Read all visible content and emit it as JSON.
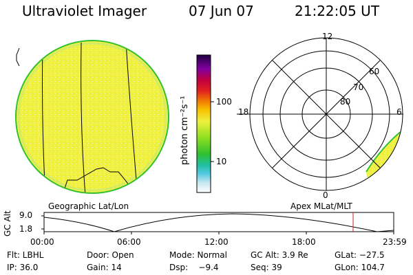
{
  "header": {
    "instrument": "Ultraviolet Imager",
    "date": "07 Jun 07",
    "time": "21:22:05 UT"
  },
  "colorbar": {
    "label": "photon cm⁻²s⁻¹",
    "ticks": [
      "100",
      "10"
    ]
  },
  "geo_panel": {
    "caption": "Geographic Lat/Lon"
  },
  "polar_panel": {
    "caption": "Apex MLat/MLT",
    "mlt_labels": {
      "top": "12",
      "left": "18",
      "right": "6",
      "bottom": "0"
    },
    "lat_labels": [
      "60",
      "70",
      "80"
    ]
  },
  "altitude_plot": {
    "ylabel": "GC Alt",
    "yticks": [
      "9.0",
      "1.8"
    ],
    "xticks": [
      "00:00",
      "06:00",
      "12:00",
      "18:00",
      "23:59"
    ]
  },
  "info": {
    "row1": {
      "flt": "Flt: LBHL",
      "door": "Door: Open",
      "mode": "Mode: Normal",
      "gc_alt": "GC Alt: 3.9 Re",
      "glat": "GLat: −27.5"
    },
    "row2": {
      "ip": "IP: 36.0",
      "gain": "Gain: 14",
      "dsp": "Dsp:    −9.4",
      "seq": "Seq: 39",
      "glon": "GLon: 104.7"
    }
  },
  "colors": {
    "disk_fill": "#f0f040",
    "disk_edge": "#30c030",
    "marker_red": "#d02020"
  }
}
